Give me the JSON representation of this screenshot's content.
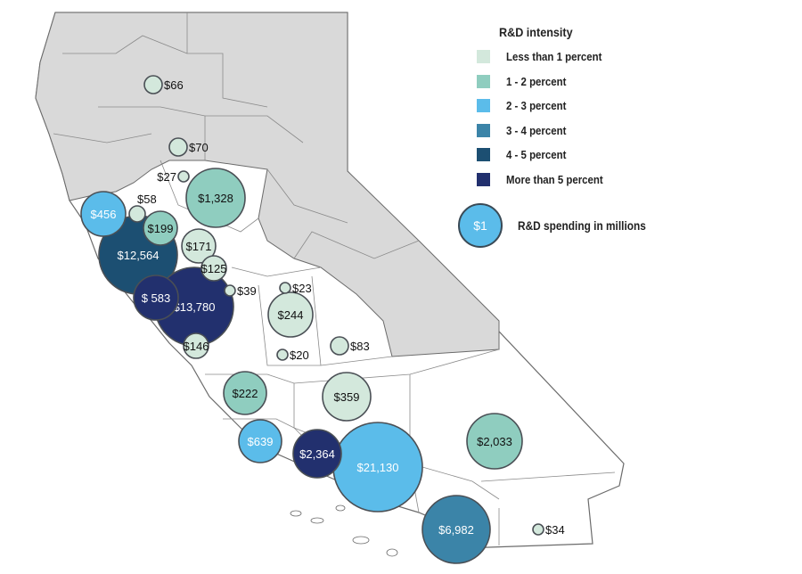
{
  "legend": {
    "title": "R&D intensity",
    "items": [
      {
        "label": "Less than 1 percent",
        "color": "#d3e8dc"
      },
      {
        "label": "1  -  2  percent",
        "color": "#8fcdbf"
      },
      {
        "label": "2  -  3  percent",
        "color": "#5bbcea"
      },
      {
        "label": "3  -  4  percent",
        "color": "#3b84a8"
      },
      {
        "label": "4  -  5  percent",
        "color": "#1c4f72"
      },
      {
        "label": "More than 5 percent",
        "color": "#22306e"
      }
    ],
    "size_key": {
      "value": "$1",
      "label": "R&D spending in millions"
    }
  },
  "regions": [
    {
      "label": "$66",
      "value": 66,
      "intensity": 0
    },
    {
      "label": "$70",
      "value": 70,
      "intensity": 0
    },
    {
      "label": "$27",
      "value": 27,
      "intensity": 0
    },
    {
      "label": "$1,328",
      "value": 1328,
      "intensity": 1
    },
    {
      "label": "$456",
      "value": 456,
      "intensity": 2
    },
    {
      "label": "$58",
      "value": 58,
      "intensity": 0
    },
    {
      "label": "$12,564",
      "value": 12564,
      "intensity": 4
    },
    {
      "label": "$199",
      "value": 199,
      "intensity": 1
    },
    {
      "label": "$171",
      "value": 171,
      "intensity": 0
    },
    {
      "label": "$125",
      "value": 125,
      "intensity": 0
    },
    {
      "label": "$39",
      "value": 39,
      "intensity": 0
    },
    {
      "label": "$23",
      "value": 23,
      "intensity": 0
    },
    {
      "label": "$13,780",
      "value": 13780,
      "intensity": 5
    },
    {
      "label": "$ 583",
      "value": 583,
      "intensity": 5
    },
    {
      "label": "$244",
      "value": 244,
      "intensity": 0
    },
    {
      "label": "$146",
      "value": 146,
      "intensity": 0
    },
    {
      "label": "$83",
      "value": 83,
      "intensity": 0
    },
    {
      "label": "$20",
      "value": 20,
      "intensity": 0
    },
    {
      "label": "$222",
      "value": 222,
      "intensity": 1
    },
    {
      "label": "$359",
      "value": 359,
      "intensity": 0
    },
    {
      "label": "$2,033",
      "value": 2033,
      "intensity": 1
    },
    {
      "label": "$639",
      "value": 639,
      "intensity": 2
    },
    {
      "label": "$2,364",
      "value": 2364,
      "intensity": 5
    },
    {
      "label": "$21,130",
      "value": 21130,
      "intensity": 2
    },
    {
      "label": "$6,982",
      "value": 6982,
      "intensity": 3
    },
    {
      "label": "$34",
      "value": 34,
      "intensity": 0
    }
  ]
}
